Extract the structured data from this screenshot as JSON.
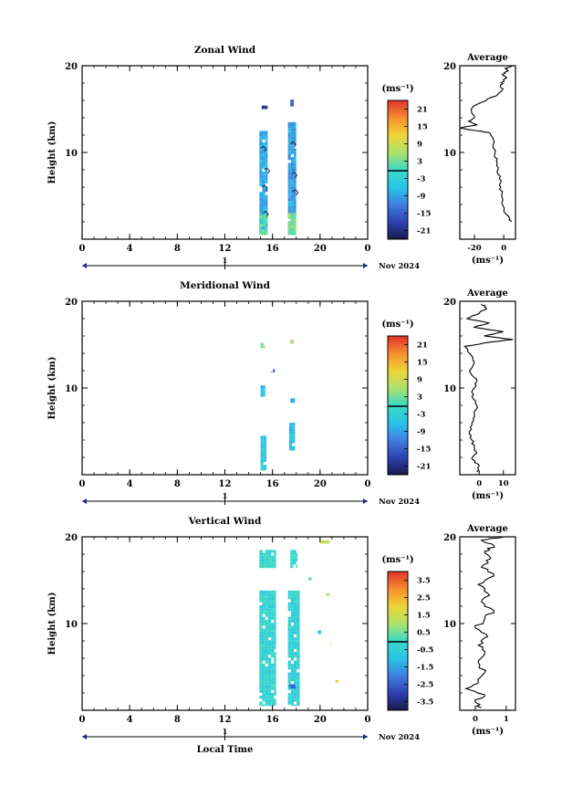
{
  "figure": {
    "month_label": "Nov 2024",
    "xaxis_label": "Local Time",
    "day_label": "1",
    "cbar_unit": "(ms⁻¹)",
    "avg_unit": "(ms⁻¹)"
  },
  "chart_data": [
    {
      "type": "heatmap",
      "title": "Zonal Wind",
      "ylabel": "Height (km)",
      "xlabel": "",
      "x_ticks": [
        "0",
        "4",
        "8",
        "12",
        "16",
        "20",
        "0"
      ],
      "xlim": [
        0,
        24
      ],
      "y_ticks": [
        "10",
        "20"
      ],
      "ylim": [
        0,
        20
      ],
      "colorbar": {
        "unit": "(ms⁻¹)",
        "ticks": [
          "21",
          "15",
          "9",
          "3",
          "-3",
          "-9",
          "-15",
          "-21"
        ],
        "range": [
          -24,
          24
        ]
      },
      "data_blocks": [
        {
          "x": [
            14.9,
            15.6
          ],
          "y": [
            0.5,
            12.5
          ],
          "value": -8
        },
        {
          "x": [
            14.9,
            15.6
          ],
          "y": [
            0.5,
            2.8
          ],
          "value": 2
        },
        {
          "x": [
            17.3,
            18.0
          ],
          "y": [
            0.5,
            13.5
          ],
          "value": -9
        },
        {
          "x": [
            17.3,
            18.0
          ],
          "y": [
            0.5,
            3.0
          ],
          "value": 3
        },
        {
          "x": [
            15.1,
            15.6
          ],
          "y": [
            15.0,
            15.4
          ],
          "value": -20
        },
        {
          "x": [
            17.5,
            17.8
          ],
          "y": [
            15.3,
            16.1
          ],
          "value": -16
        }
      ],
      "profile": {
        "title": "Average",
        "xlabel": "(ms⁻¹)",
        "x_ticks": [
          "-20",
          "0"
        ],
        "xlim": [
          -30,
          8
        ],
        "ylim": [
          0,
          20
        ],
        "y_ticks": [
          "10",
          "20"
        ],
        "points": [
          [
            5,
            2
          ],
          [
            4,
            2.3
          ],
          [
            2,
            2.8
          ],
          [
            0,
            3.2
          ],
          [
            -1,
            4
          ],
          [
            -1.5,
            5
          ],
          [
            -2,
            6
          ],
          [
            -3,
            7
          ],
          [
            -4,
            8
          ],
          [
            -5,
            9
          ],
          [
            -6,
            10
          ],
          [
            -7,
            11
          ],
          [
            -8,
            11.8
          ],
          [
            -10,
            12.3
          ],
          [
            -22,
            12.6
          ],
          [
            -30,
            12.8
          ],
          [
            -18,
            13.2
          ],
          [
            -24,
            13.6
          ],
          [
            -20,
            14
          ],
          [
            -22,
            14.8
          ],
          [
            -20,
            15.4
          ],
          [
            -12,
            16
          ],
          [
            -4,
            16.7
          ],
          [
            -1,
            17.2
          ],
          [
            -2,
            17.8
          ],
          [
            0,
            18.3
          ],
          [
            2,
            18.6
          ],
          [
            -1,
            19.0
          ],
          [
            3,
            19.4
          ],
          [
            1,
            19.7
          ],
          [
            6,
            20
          ]
        ]
      }
    },
    {
      "type": "heatmap",
      "title": "Meridional Wind",
      "ylabel": "Height (km)",
      "xlabel": "",
      "x_ticks": [
        "0",
        "4",
        "8",
        "12",
        "16",
        "20",
        "0"
      ],
      "xlim": [
        0,
        24
      ],
      "y_ticks": [
        "10",
        "20"
      ],
      "ylim": [
        0,
        20
      ],
      "colorbar": {
        "unit": "(ms⁻¹)",
        "ticks": [
          "21",
          "15",
          "9",
          "3",
          "-3",
          "-9",
          "-15",
          "-21"
        ],
        "range": [
          -24,
          24
        ]
      },
      "data_blocks": [
        {
          "x": [
            15.0,
            15.5
          ],
          "y": [
            0.5,
            4.5
          ],
          "value": -5
        },
        {
          "x": [
            17.4,
            17.9
          ],
          "y": [
            2.8,
            6.0
          ],
          "value": -6
        },
        {
          "x": [
            15.0,
            15.4
          ],
          "y": [
            9.0,
            10.3
          ],
          "value": -6
        },
        {
          "x": [
            17.5,
            17.9
          ],
          "y": [
            8.3,
            8.8
          ],
          "value": -8
        },
        {
          "x": [
            15.0,
            15.4
          ],
          "y": [
            14.6,
            15.2
          ],
          "value": 5
        },
        {
          "x": [
            17.5,
            17.8
          ],
          "y": [
            15.1,
            15.6
          ],
          "value": 5
        },
        {
          "x": [
            15.8,
            16.2
          ],
          "y": [
            11.8,
            12.2
          ],
          "value": -15
        }
      ],
      "profile": {
        "title": "Average",
        "xlabel": "(ms⁻¹)",
        "x_ticks": [
          "0",
          "10"
        ],
        "xlim": [
          -8,
          15
        ],
        "ylim": [
          0,
          20
        ],
        "y_ticks": [
          "10",
          "20"
        ],
        "points": [
          [
            -1,
            0.3
          ],
          [
            0,
            1
          ],
          [
            -3,
            1.8
          ],
          [
            -1,
            2.5
          ],
          [
            -2,
            3.2
          ],
          [
            -3,
            4
          ],
          [
            -4,
            5
          ],
          [
            -3,
            6
          ],
          [
            -2,
            7
          ],
          [
            -1,
            8
          ],
          [
            -3,
            9
          ],
          [
            -2,
            10
          ],
          [
            -1,
            11
          ],
          [
            -4,
            12
          ],
          [
            -2,
            13
          ],
          [
            -4,
            14
          ],
          [
            -6,
            14.8
          ],
          [
            5,
            15.3
          ],
          [
            14,
            15.6
          ],
          [
            2,
            16
          ],
          [
            10,
            16.5
          ],
          [
            -2,
            17
          ],
          [
            4,
            17.5
          ],
          [
            -5,
            18
          ],
          [
            0,
            18.6
          ],
          [
            3,
            19.2
          ],
          [
            1,
            19.7
          ]
        ]
      }
    },
    {
      "type": "heatmap",
      "title": "Vertical Wind",
      "ylabel": "Height (km)",
      "xlabel": "Local Time",
      "x_ticks": [
        "0",
        "4",
        "8",
        "12",
        "16",
        "20",
        "0"
      ],
      "xlim": [
        0,
        24
      ],
      "y_ticks": [
        "10",
        "20"
      ],
      "ylim": [
        0,
        20
      ],
      "colorbar": {
        "unit": "(ms⁻¹)",
        "ticks": [
          "3.5",
          "2.5",
          "1.5",
          "0.5",
          "-0.5",
          "-1.5",
          "-2.5",
          "-3.5"
        ],
        "range": [
          -4,
          4
        ]
      },
      "data_blocks": [
        {
          "x": [
            14.9,
            16.3
          ],
          "y": [
            0.5,
            13.8
          ],
          "value": -0.3
        },
        {
          "x": [
            17.3,
            18.3
          ],
          "y": [
            0.5,
            13.8
          ],
          "value": -0.4
        },
        {
          "x": [
            14.9,
            16.3
          ],
          "y": [
            16.4,
            18.5
          ],
          "value": -0.2
        },
        {
          "x": [
            17.5,
            18.1
          ],
          "y": [
            16.4,
            18.5
          ],
          "value": -0.2
        },
        {
          "x": [
            17.4,
            18.0
          ],
          "y": [
            2.5,
            3.0
          ],
          "value": -2.5
        },
        {
          "x": [
            20.0,
            20.8
          ],
          "y": [
            19.2,
            19.6
          ],
          "value": 1.4
        },
        {
          "x": [
            19.0,
            19.3
          ],
          "y": [
            15.0,
            15.3
          ],
          "value": 0.6
        },
        {
          "x": [
            20.5,
            20.8
          ],
          "y": [
            13.2,
            13.5
          ],
          "value": 1.2
        },
        {
          "x": [
            19.8,
            20.1
          ],
          "y": [
            8.8,
            9.2
          ],
          "value": -1.0
        },
        {
          "x": [
            20.6,
            20.9
          ],
          "y": [
            7.5,
            7.8
          ],
          "value": 2.5
        },
        {
          "x": [
            21.3,
            21.6
          ],
          "y": [
            3.2,
            3.5
          ],
          "value": 1.8
        }
      ],
      "profile": {
        "title": "Average",
        "xlabel": "(ms⁻¹)",
        "x_ticks": [
          "0",
          "1"
        ],
        "xlim": [
          -0.5,
          1.3
        ],
        "ylim": [
          0,
          20
        ],
        "y_ticks": [
          "10",
          "20"
        ],
        "points": [
          [
            0.2,
            0.3
          ],
          [
            0.0,
            1.0
          ],
          [
            0.3,
            1.8
          ],
          [
            -0.3,
            2.5
          ],
          [
            0.1,
            3.3
          ],
          [
            0.3,
            4.3
          ],
          [
            0.1,
            5.5
          ],
          [
            0.3,
            6.5
          ],
          [
            0.1,
            7.5
          ],
          [
            0.4,
            8.5
          ],
          [
            0.0,
            9.5
          ],
          [
            0.3,
            10.5
          ],
          [
            0.6,
            11.5
          ],
          [
            0.2,
            12.5
          ],
          [
            0.4,
            13.5
          ],
          [
            0.1,
            14.5
          ],
          [
            0.6,
            15.5
          ],
          [
            0.2,
            16.5
          ],
          [
            0.5,
            17.5
          ],
          [
            0.3,
            18.3
          ],
          [
            0.6,
            19.0
          ],
          [
            0.2,
            19.6
          ],
          [
            0.9,
            20
          ]
        ]
      }
    }
  ]
}
